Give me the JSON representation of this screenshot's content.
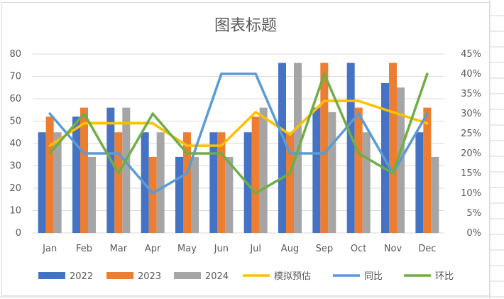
{
  "chart_data": {
    "type": "bar",
    "title": "图表标题",
    "categories": [
      "Jan",
      "Feb",
      "Mar",
      "Apr",
      "May",
      "Jun",
      "Jul",
      "Aug",
      "Sep",
      "Oct",
      "Nov",
      "Dec"
    ],
    "y_left": {
      "min": 0,
      "max": 80,
      "ticks": [
        0,
        10,
        20,
        30,
        40,
        50,
        60,
        70,
        80
      ]
    },
    "y_right": {
      "min": 0,
      "max": 45,
      "ticks": [
        "0%",
        "5%",
        "10%",
        "15%",
        "20%",
        "25%",
        "30%",
        "35%",
        "40%",
        "45%"
      ]
    },
    "grid": true,
    "legend_position": "bottom",
    "bar_series": [
      {
        "name": "2022",
        "color": "#4472c4",
        "values": [
          45,
          52,
          56,
          45,
          34,
          45,
          45,
          76,
          56,
          76,
          67,
          45
        ]
      },
      {
        "name": "2023",
        "color": "#ed7d31",
        "values": [
          52,
          56,
          45,
          34,
          45,
          45,
          52,
          45,
          76,
          56,
          76,
          56
        ]
      },
      {
        "name": "2024",
        "color": "#a5a5a5",
        "values": [
          45,
          34,
          56,
          45,
          34,
          34,
          56,
          76,
          54,
          45,
          65,
          34
        ]
      }
    ],
    "line_series": [
      {
        "name": "模拟预估",
        "color": "#ffc000",
        "axis": "left",
        "values": [
          39,
          49,
          49,
          49,
          39,
          39,
          54,
          44,
          59,
          59,
          54,
          49
        ]
      },
      {
        "name": "同比",
        "color": "#5b9bd5",
        "axis": "right",
        "values": [
          30,
          20,
          20,
          10,
          15,
          40,
          40,
          20,
          20,
          30,
          15,
          30
        ]
      },
      {
        "name": "环比",
        "color": "#70ad47",
        "axis": "right",
        "values": [
          20,
          30,
          15,
          30,
          20,
          20,
          10,
          15,
          40,
          20,
          15,
          40
        ]
      }
    ]
  }
}
